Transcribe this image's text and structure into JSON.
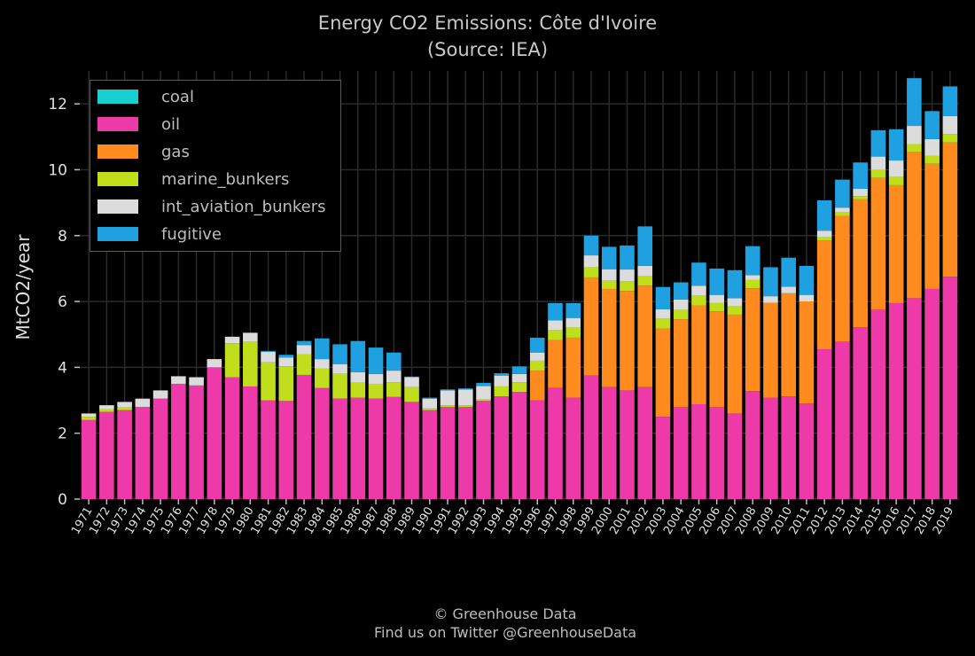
{
  "title_line1": "Energy CO2 Emissions: Côte d'Ivoire",
  "title_line2": "(Source: IEA)",
  "credit_line1": "© Greenhouse Data",
  "credit_line2": "Find us on Twitter @GreenhouseData",
  "chart_data": {
    "type": "bar",
    "stacked": true,
    "ylabel": "MtCO2/year",
    "ylim": [
      0,
      13
    ],
    "yticks": [
      0,
      2,
      4,
      6,
      8,
      10,
      12
    ],
    "grid": true,
    "legend_position": "top-left",
    "categories": [
      "1971",
      "1972",
      "1973",
      "1974",
      "1975",
      "1976",
      "1977",
      "1978",
      "1979",
      "1980",
      "1981",
      "1982",
      "1983",
      "1984",
      "1985",
      "1986",
      "1987",
      "1988",
      "1989",
      "1990",
      "1991",
      "1992",
      "1993",
      "1994",
      "1995",
      "1996",
      "1997",
      "1998",
      "1999",
      "2000",
      "2001",
      "2002",
      "2003",
      "2004",
      "2005",
      "2006",
      "2007",
      "2008",
      "2009",
      "2010",
      "2011",
      "2012",
      "2013",
      "2014",
      "2015",
      "2016",
      "2017",
      "2018",
      "2019"
    ],
    "series": [
      {
        "name": "coal",
        "color": "#17d1d1",
        "values": [
          0,
          0,
          0,
          0,
          0,
          0,
          0,
          0,
          0,
          0,
          0,
          0,
          0,
          0,
          0,
          0,
          0,
          0,
          0,
          0,
          0,
          0,
          0,
          0,
          0,
          0,
          0,
          0,
          0,
          0,
          0,
          0,
          0,
          0,
          0,
          0,
          0,
          0,
          0,
          0,
          0,
          0,
          0,
          0,
          0,
          0,
          0,
          0,
          0
        ]
      },
      {
        "name": "oil",
        "color": "#ee3aa8",
        "values": [
          2.4,
          2.65,
          2.7,
          2.8,
          3.05,
          3.5,
          3.45,
          4.0,
          3.7,
          3.42,
          3.0,
          2.98,
          3.77,
          3.37,
          3.05,
          3.08,
          3.05,
          3.1,
          2.95,
          2.7,
          2.8,
          2.8,
          2.98,
          3.12,
          3.25,
          3.0,
          3.38,
          3.08,
          3.75,
          3.4,
          3.3,
          3.4,
          2.5,
          2.8,
          2.88,
          2.8,
          2.6,
          3.28,
          3.08,
          3.12,
          2.9,
          4.55,
          4.78,
          5.22,
          5.75,
          5.95,
          6.1,
          6.38,
          6.75
        ]
      },
      {
        "name": "gas",
        "color": "#ff8a1e",
        "values": [
          0,
          0,
          0,
          0,
          0,
          0,
          0,
          0,
          0,
          0,
          0,
          0,
          0,
          0,
          0,
          0,
          0,
          0,
          0,
          0,
          0,
          0,
          0,
          0,
          0,
          0.9,
          1.45,
          1.82,
          2.98,
          2.98,
          3.02,
          3.08,
          2.68,
          2.66,
          3.0,
          2.9,
          3.0,
          3.12,
          2.88,
          3.13,
          3.1,
          3.3,
          3.82,
          3.88,
          4.0,
          3.58,
          4.43,
          3.8,
          4.08
        ]
      },
      {
        "name": "marine_bunkers",
        "color": "#c0de1c",
        "values": [
          0.1,
          0.08,
          0.08,
          0.0,
          0.0,
          0.0,
          0.0,
          0.0,
          1.03,
          1.35,
          1.15,
          1.05,
          0.63,
          0.6,
          0.75,
          0.45,
          0.45,
          0.45,
          0.45,
          0.05,
          0.05,
          0.05,
          0.05,
          0.3,
          0.3,
          0.3,
          0.3,
          0.3,
          0.3,
          0.25,
          0.3,
          0.28,
          0.3,
          0.3,
          0.3,
          0.25,
          0.25,
          0.25,
          0.0,
          0.0,
          0.0,
          0.1,
          0.1,
          0.1,
          0.25,
          0.25,
          0.25,
          0.25,
          0.25
        ]
      },
      {
        "name": "int_aviation_bunkers",
        "color": "#dcdcdc",
        "values": [
          0.1,
          0.12,
          0.17,
          0.25,
          0.25,
          0.23,
          0.25,
          0.25,
          0.2,
          0.28,
          0.32,
          0.27,
          0.27,
          0.28,
          0.3,
          0.32,
          0.3,
          0.35,
          0.3,
          0.3,
          0.45,
          0.48,
          0.4,
          0.33,
          0.25,
          0.25,
          0.3,
          0.3,
          0.37,
          0.35,
          0.35,
          0.32,
          0.28,
          0.3,
          0.3,
          0.25,
          0.25,
          0.15,
          0.2,
          0.2,
          0.2,
          0.2,
          0.15,
          0.22,
          0.4,
          0.5,
          0.55,
          0.5,
          0.55
        ]
      },
      {
        "name": "fugitive",
        "color": "#1fa0e0",
        "values": [
          0,
          0,
          0,
          0,
          0,
          0,
          0,
          0,
          0,
          0,
          0.03,
          0.08,
          0.13,
          0.63,
          0.6,
          0.95,
          0.8,
          0.55,
          0.02,
          0.03,
          0.03,
          0.03,
          0.1,
          0.07,
          0.23,
          0.45,
          0.52,
          0.45,
          0.6,
          0.68,
          0.73,
          1.2,
          0.68,
          0.52,
          0.7,
          0.8,
          0.85,
          0.88,
          0.88,
          0.88,
          0.88,
          0.92,
          0.85,
          0.8,
          0.8,
          0.95,
          1.45,
          0.85,
          0.9
        ]
      }
    ]
  }
}
